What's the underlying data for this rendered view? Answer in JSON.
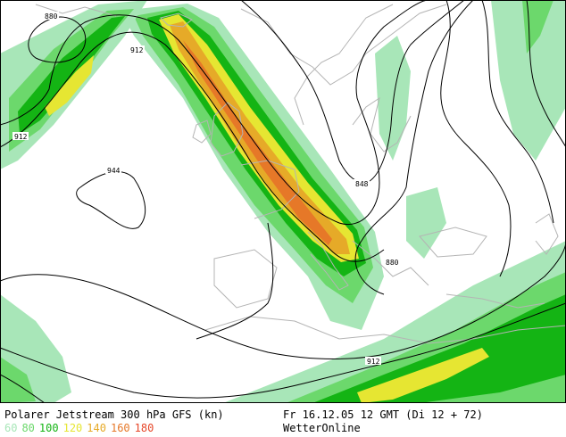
{
  "footer": {
    "title": "Polarer Jetstream 300 hPa GFS (kn)",
    "datetime": "Fr 16.12.05 12 GMT (Di 12 + 72)",
    "source": "WetterOnline"
  },
  "legend": [
    {
      "value": "60",
      "color": "#a8e6b8"
    },
    {
      "value": "80",
      "color": "#6cd86c"
    },
    {
      "value": "100",
      "color": "#14b414"
    },
    {
      "value": "120",
      "color": "#e6e632"
    },
    {
      "value": "140",
      "color": "#e6aa28"
    },
    {
      "value": "160",
      "color": "#e67828"
    },
    {
      "value": "180",
      "color": "#e64628"
    }
  ],
  "contour_labels": [
    "880",
    "912",
    "912",
    "944",
    "848",
    "880",
    "912"
  ],
  "colors": {
    "coastline": "#b4b4b4",
    "contour": "#000000",
    "background": "#ffffff"
  }
}
